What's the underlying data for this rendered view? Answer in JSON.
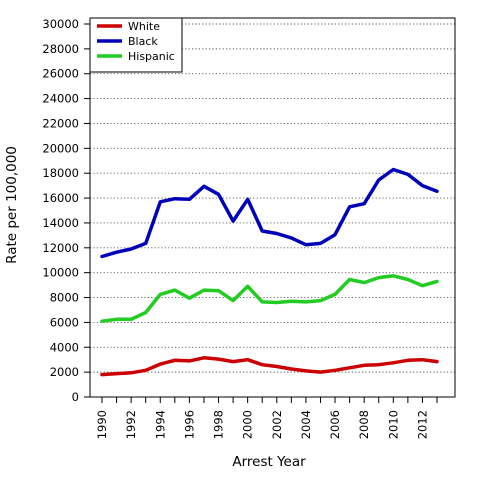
{
  "chart_data": {
    "type": "line",
    "xlabel": "Arrest Year",
    "ylabel": "Rate per 100,000",
    "x": [
      1990,
      1991,
      1992,
      1993,
      1994,
      1995,
      1996,
      1997,
      1998,
      1999,
      2000,
      2001,
      2002,
      2003,
      2004,
      2005,
      2006,
      2007,
      2008,
      2009,
      2010,
      2011,
      2012,
      2013
    ],
    "x_ticks": [
      "1990",
      "1992",
      "1994",
      "1996",
      "1998",
      "2000",
      "2002",
      "2004",
      "2006",
      "2008",
      "2010",
      "2012"
    ],
    "y_ticks": [
      "0",
      "2000",
      "4000",
      "6000",
      "8000",
      "10000",
      "12000",
      "14000",
      "16000",
      "18000",
      "20000",
      "22000",
      "24000",
      "26000",
      "28000",
      "30000"
    ],
    "ylim": [
      0,
      30000
    ],
    "xlim": [
      1990,
      2013
    ],
    "grid": "horizontal dotted",
    "legend_position": "top-left",
    "series": [
      {
        "name": "White",
        "color": "#cc0000",
        "values": [
          1800,
          1880,
          1950,
          2150,
          2650,
          2950,
          2900,
          3150,
          3050,
          2850,
          3000,
          2600,
          2450,
          2250,
          2100,
          2000,
          2150,
          2350,
          2550,
          2600,
          2750,
          2950,
          3000,
          2850
        ]
      },
      {
        "name": "Black",
        "color": "#0000bb",
        "values": [
          11300,
          11650,
          11900,
          12350,
          15700,
          15950,
          15900,
          16950,
          16300,
          14150,
          15900,
          13350,
          13150,
          12800,
          12250,
          12350,
          13050,
          15300,
          15550,
          17450,
          18300,
          17900,
          17000,
          16550
        ]
      },
      {
        "name": "Hispanic",
        "color": "#22cc22",
        "values": [
          6100,
          6250,
          6250,
          6800,
          8250,
          8600,
          7950,
          8600,
          8550,
          7750,
          8900,
          7650,
          7600,
          7700,
          7650,
          7750,
          8250,
          9450,
          9200,
          9600,
          9750,
          9450,
          8950,
          9300
        ]
      }
    ]
  }
}
